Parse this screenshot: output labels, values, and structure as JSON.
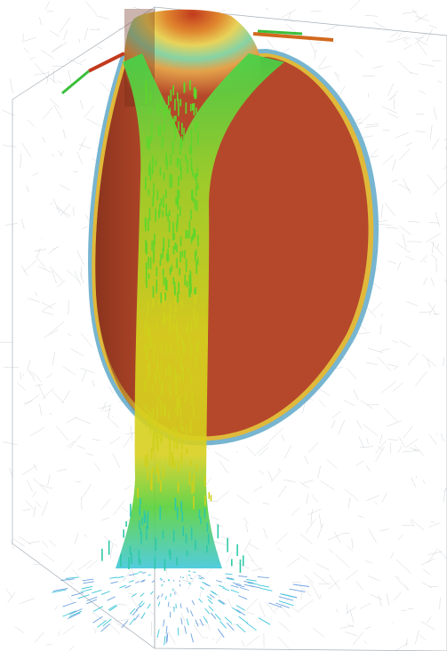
{
  "scene": {
    "kind": "3D finite-element mesh visualization with velocity vector field",
    "colors": {
      "background": "#ffffff",
      "mesh_line": "#9aa3ad",
      "bubble_fill": "#b5482a",
      "bubble_shadow": "#8a3420",
      "bubble_rim_inner": "#e0b93a",
      "bubble_rim_outer": "#5fa8c8",
      "cap_red": "#c23a1e",
      "cap_orange": "#e0872e",
      "cap_yellow": "#e8d35a",
      "cap_green": "#7fcf8a",
      "cap_cyan": "#7ec9c9",
      "vector_high": "#d9e021",
      "vector_mid": "#4cd137",
      "vector_low": "#3fc7d9",
      "vector_hot": "#d2691e"
    }
  }
}
